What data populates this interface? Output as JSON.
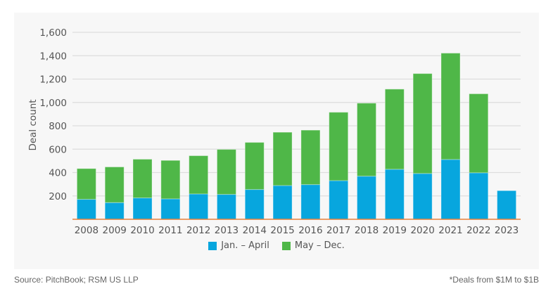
{
  "chart_data": {
    "type": "bar",
    "stacked": true,
    "title": "",
    "xlabel": "",
    "ylabel": "Deal count",
    "ylim": [
      0,
      1600
    ],
    "yticks": [
      "1,600",
      "1,400",
      "1,200",
      "1,000",
      "800",
      "600",
      "400",
      "200"
    ],
    "ytick_values": [
      1600,
      1400,
      1200,
      1000,
      800,
      600,
      400,
      200
    ],
    "grid": true,
    "legend_position": "bottom",
    "categories": [
      "2008",
      "2009",
      "2010",
      "2011",
      "2012",
      "2013",
      "2014",
      "2015",
      "2016",
      "2017",
      "2018",
      "2019",
      "2020",
      "2021",
      "2022",
      "2023"
    ],
    "series": [
      {
        "name": "Jan. – April",
        "color": "#07a6de",
        "values": [
          171,
          143,
          183,
          175,
          217,
          213,
          255,
          289,
          297,
          331,
          369,
          428,
          392,
          512,
          398,
          245
        ]
      },
      {
        "name": "May – Dec.",
        "color": "#4fb748",
        "values": [
          263,
          305,
          331,
          329,
          327,
          385,
          403,
          456,
          466,
          585,
          625,
          686,
          855,
          910,
          676,
          0
        ]
      }
    ],
    "totals": [
      434,
      448,
      514,
      504,
      544,
      598,
      658,
      745,
      763,
      916,
      994,
      1114,
      1247,
      1422,
      1074,
      245
    ]
  },
  "footer": {
    "source": "Source: PitchBook; RSM US LLP",
    "note": "*Deals from $1M to $1B"
  },
  "colors": {
    "panel_bg": "#f7f7f7",
    "grid": "#dddddd",
    "axis": "#e8803a"
  }
}
